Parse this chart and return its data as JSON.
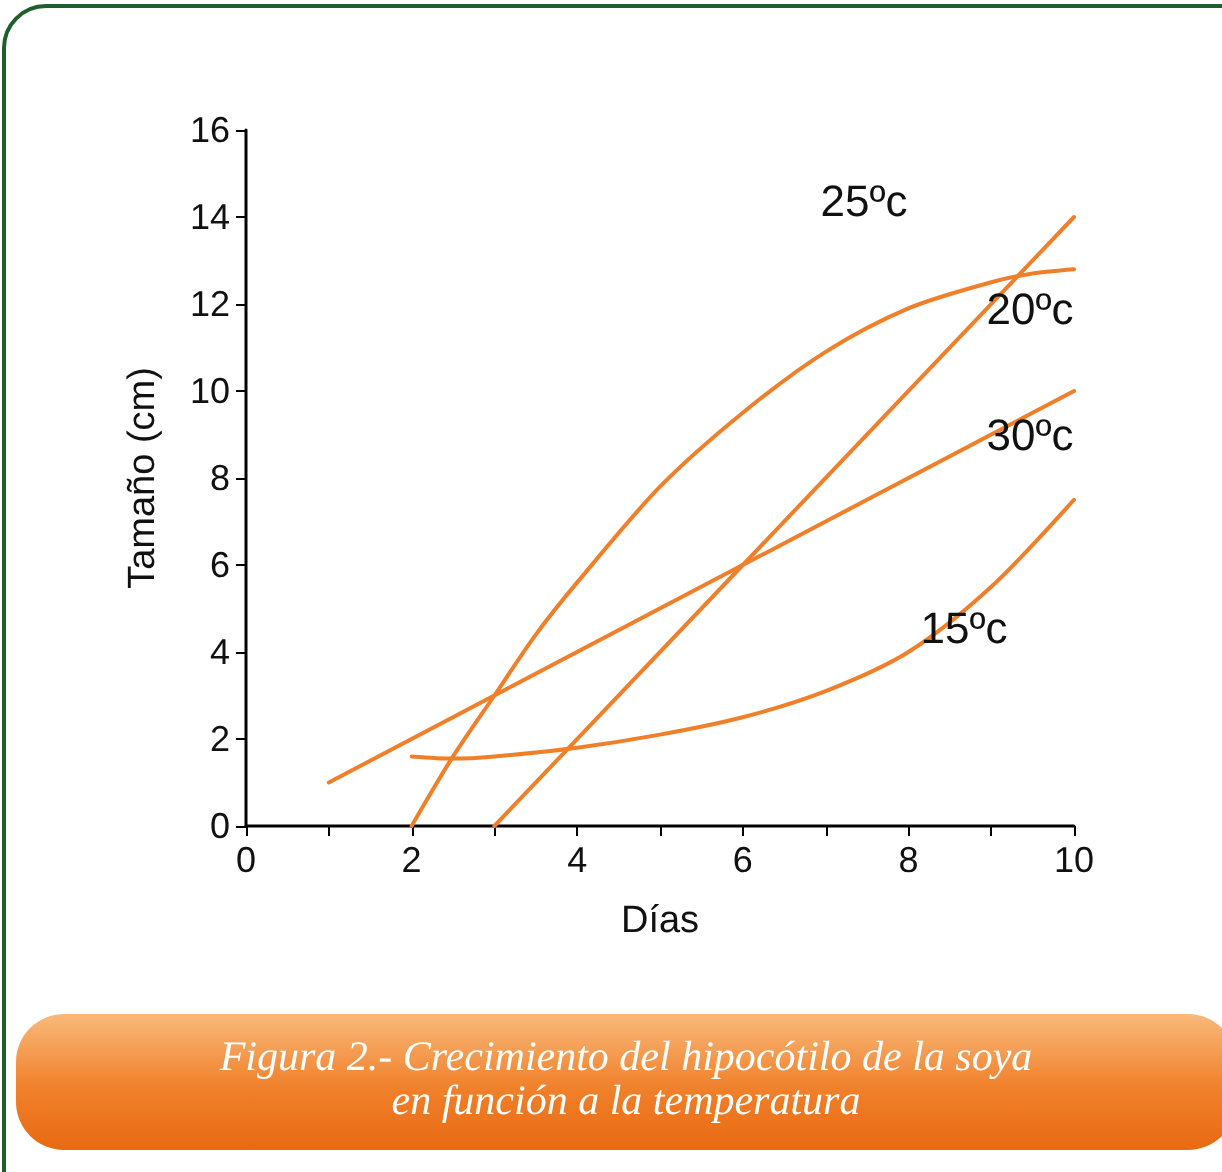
{
  "chart_data": {
    "type": "line",
    "title": "Figura 2.- Crecimiento del hipocótilo de la soya\nen función a la temperatura",
    "xlabel": "Días",
    "ylabel": "Tamaño (cm)",
    "xlim": [
      0,
      10
    ],
    "ylim": [
      0,
      16
    ],
    "xticks": [
      0,
      {
        "value": 1,
        "label": null
      },
      2,
      {
        "value": 3,
        "label": null
      },
      4,
      {
        "value": 5,
        "label": null
      },
      6,
      {
        "value": 7,
        "label": null
      },
      8,
      {
        "value": 9,
        "label": null
      },
      10
    ],
    "yticks": [
      0,
      2,
      4,
      6,
      8,
      10,
      12,
      14,
      16
    ],
    "grid": false,
    "marker": "none",
    "line_style": "solid",
    "series": [
      {
        "name": "25ºc",
        "color": "#f07f2a",
        "x": [
          2,
          2.5,
          3,
          3.5,
          4,
          5,
          6,
          7,
          8,
          9,
          9.5,
          10
        ],
        "values": [
          0,
          1.6,
          3,
          4.4,
          5.6,
          7.8,
          9.5,
          10.9,
          11.9,
          12.5,
          12.7,
          12.8
        ]
      },
      {
        "name": "20ºc",
        "color": "#f07f2a",
        "x": [
          3,
          10
        ],
        "values": [
          0,
          14
        ]
      },
      {
        "name": "30ºc",
        "color": "#f07f2a",
        "x": [
          1,
          10
        ],
        "values": [
          1,
          10
        ]
      },
      {
        "name": "15ºc",
        "color": "#f07f2a",
        "x": [
          2,
          2.5,
          3,
          4,
          5,
          6,
          7,
          8,
          9,
          10
        ],
        "values": [
          1.6,
          1.55,
          1.6,
          1.8,
          2.1,
          2.5,
          3.1,
          4,
          5.5,
          7.5
        ]
      }
    ]
  }
}
